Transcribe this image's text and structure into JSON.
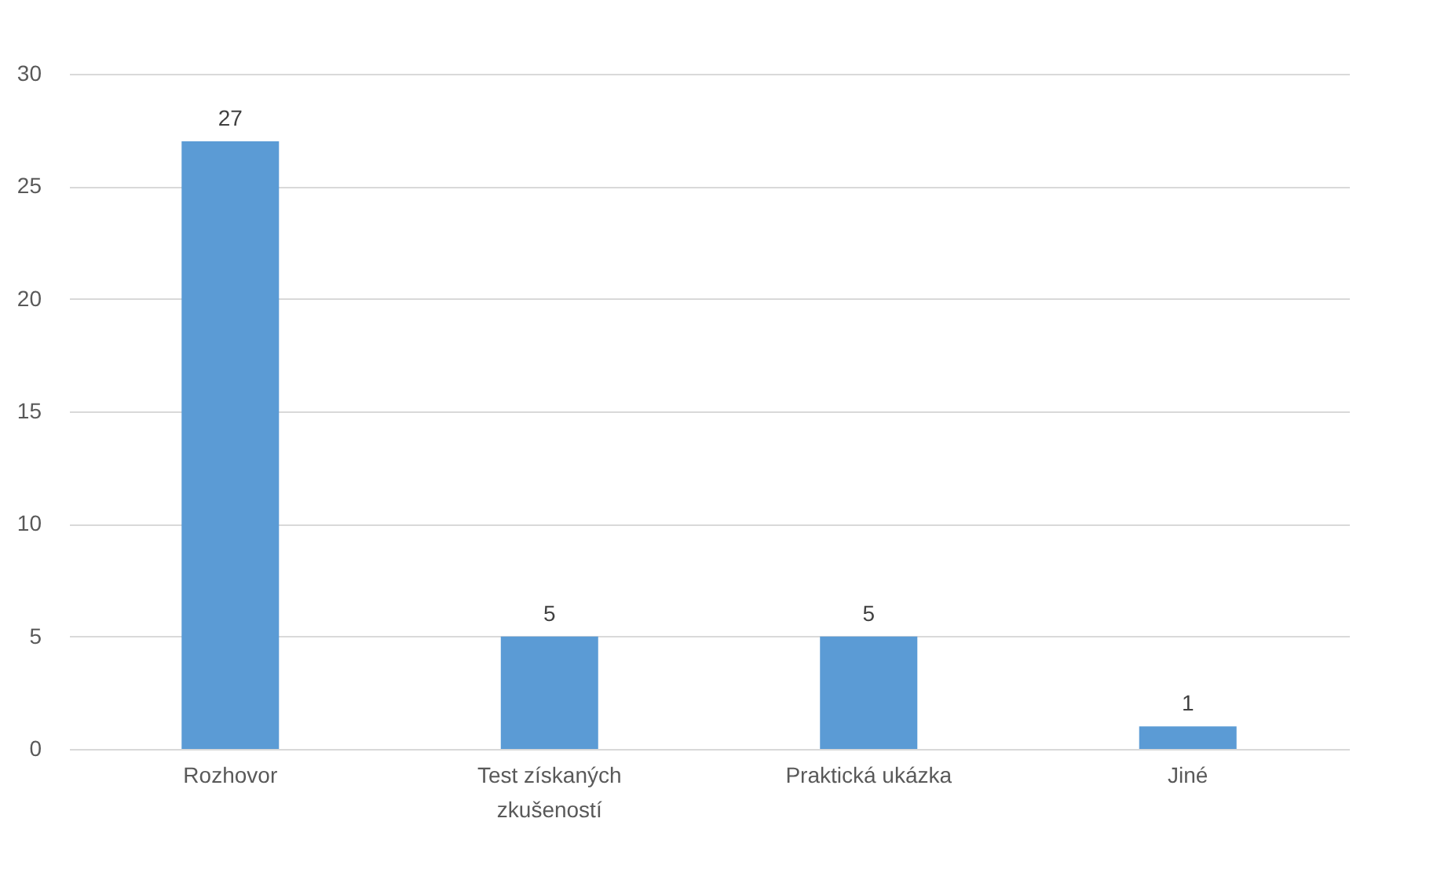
{
  "chart_data": {
    "type": "bar",
    "categories": [
      "Rozhovor",
      "Test získaných zkušeností",
      "Praktická ukázka",
      "Jiné"
    ],
    "values": [
      27,
      5,
      5,
      1
    ],
    "color": "#5b9bd5",
    "ylim": [
      0,
      30
    ],
    "yticks": [
      0,
      5,
      10,
      15,
      20,
      25,
      30
    ],
    "grid": "y",
    "data_labels": true
  }
}
